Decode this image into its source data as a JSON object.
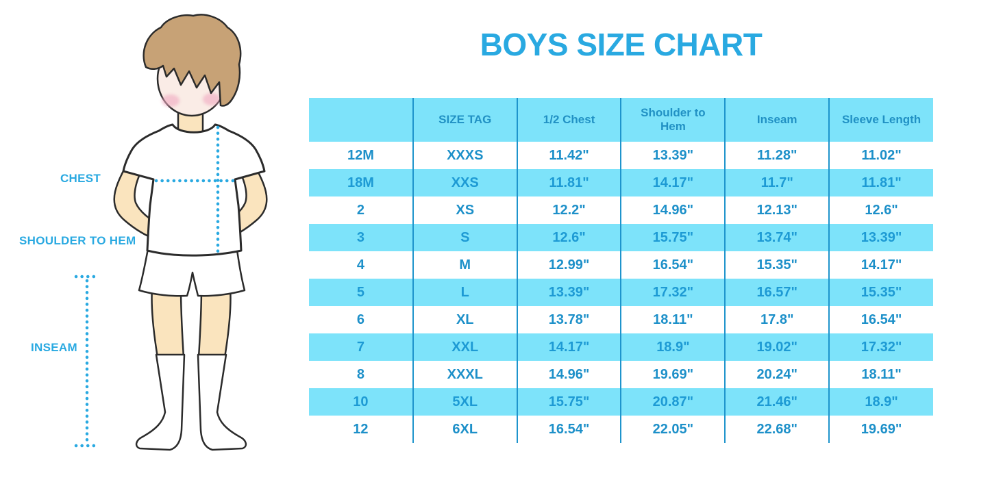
{
  "title": "BOYS SIZE CHART",
  "colors": {
    "accent_blue": "#29A9E1",
    "stripe_blue": "#7DE3FA",
    "divider_blue": "#1E94CC",
    "table_text_blue": "#1D90C9",
    "hair_brown": "#C7A276",
    "face_skin": "#FAECE6",
    "body_skin": "#FAE4BE",
    "cheek_pink": "#F0A9BF",
    "outline": "#2B2B2B"
  },
  "figure": {
    "description": "cartoon boy wearing white t-shirt, white shorts and knee-high socks with dotted measurement guides",
    "labels": {
      "chest": "CHEST",
      "shoulder_to_hem": "SHOULDER TO HEM",
      "inseam": "INSEAM"
    }
  },
  "chart_data": {
    "type": "table",
    "title": "BOYS SIZE CHART",
    "columns": [
      "",
      "SIZE TAG",
      "1/2 Chest",
      "Shoulder to Hem",
      "Inseam",
      "Sleeve Length"
    ],
    "rows": [
      [
        "12M",
        "XXXS",
        "11.42\"",
        "13.39\"",
        "11.28\"",
        "11.02\""
      ],
      [
        "18M",
        "XXS",
        "11.81\"",
        "14.17\"",
        "11.7\"",
        "11.81\""
      ],
      [
        "2",
        "XS",
        "12.2\"",
        "14.96\"",
        "12.13\"",
        "12.6\""
      ],
      [
        "3",
        "S",
        "12.6\"",
        "15.75\"",
        "13.74\"",
        "13.39\""
      ],
      [
        "4",
        "M",
        "12.99\"",
        "16.54\"",
        "15.35\"",
        "14.17\""
      ],
      [
        "5",
        "L",
        "13.39\"",
        "17.32\"",
        "16.57\"",
        "15.35\""
      ],
      [
        "6",
        "XL",
        "13.78\"",
        "18.11\"",
        "17.8\"",
        "16.54\""
      ],
      [
        "7",
        "XXL",
        "14.17\"",
        "18.9\"",
        "19.02\"",
        "17.32\""
      ],
      [
        "8",
        "XXXL",
        "14.96\"",
        "19.69\"",
        "20.24\"",
        "18.11\""
      ],
      [
        "10",
        "5XL",
        "15.75\"",
        "20.87\"",
        "21.46\"",
        "18.9\""
      ],
      [
        "12",
        "6XL",
        "16.54\"",
        "22.05\"",
        "22.68\"",
        "19.69\""
      ]
    ],
    "layout": {
      "striped": true,
      "first_data_row_background": "white",
      "grid": "vertical-dividers-only",
      "header_background": "#7DE3FA"
    }
  }
}
